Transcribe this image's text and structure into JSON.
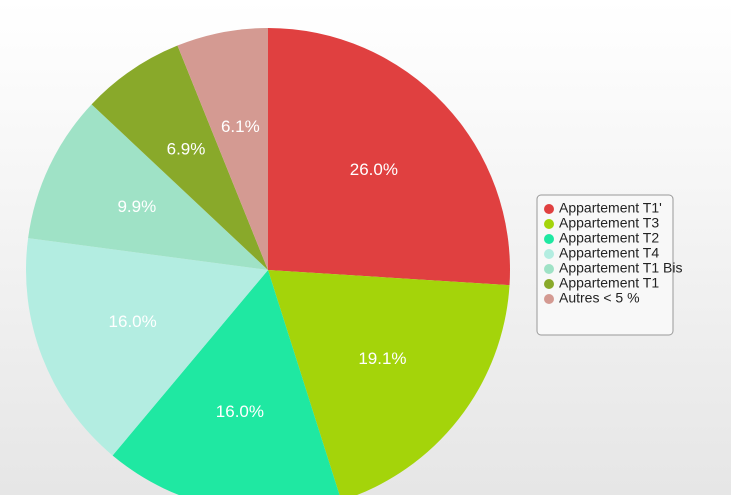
{
  "chart_data": {
    "type": "pie",
    "categories": [
      "Appartement T1'",
      "Appartement T3",
      "Appartement T2",
      "Appartement T4",
      "Appartement T1 Bis",
      "Appartement T1",
      "Autres < 5 %"
    ],
    "values": [
      26.0,
      19.1,
      16.0,
      16.0,
      9.9,
      6.9,
      6.1
    ],
    "value_labels": [
      "26.0%",
      "19.1%",
      "16.0%",
      "16.0%",
      "9.9%",
      "6.9%",
      "6.1%"
    ],
    "colors": [
      "#e04040",
      "#a4d40a",
      "#1fe8a2",
      "#b3ede1",
      "#9fe2c6",
      "#89a92a",
      "#d49a92"
    ],
    "legend": "right"
  }
}
